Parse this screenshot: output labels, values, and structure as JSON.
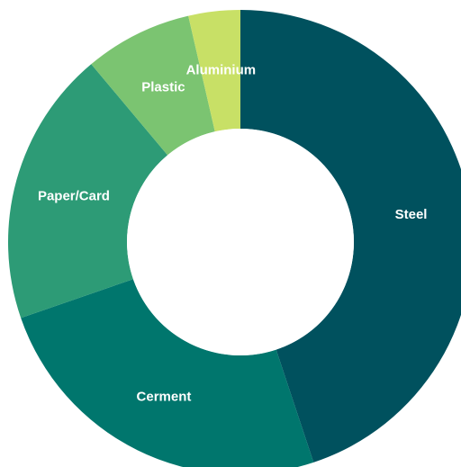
{
  "chart_data": {
    "type": "pie",
    "variant": "donut",
    "categories": [
      "Steel",
      "Cerment",
      "Paper/Card",
      "Plastic",
      "Aluminium"
    ],
    "values": [
      44.9,
      24.8,
      19.2,
      7.5,
      3.6
    ],
    "colors": [
      "#00515e",
      "#00766d",
      "#2d9b76",
      "#7bc471",
      "#c8e066"
    ],
    "start_angle_deg": 0,
    "direction": "clockwise",
    "legend": "none",
    "labels_on_slices": true
  }
}
